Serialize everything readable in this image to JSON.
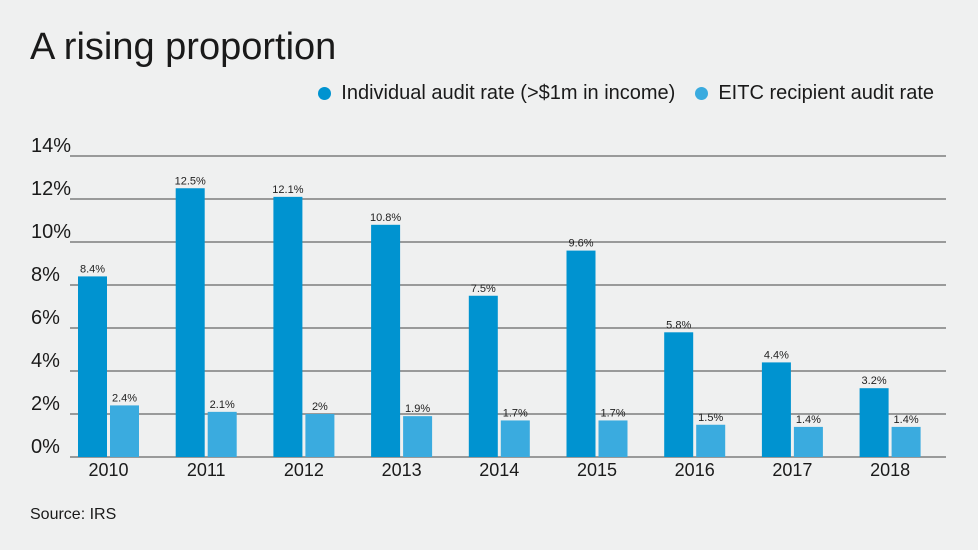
{
  "chart_data": {
    "type": "bar",
    "title": "A rising proportion",
    "source": "Source: IRS",
    "categories": [
      "2010",
      "2011",
      "2012",
      "2013",
      "2014",
      "2015",
      "2016",
      "2017",
      "2018"
    ],
    "series": [
      {
        "name": "Individual audit rate (>$1m in income)",
        "color": "#0093d0",
        "values": [
          8.4,
          12.5,
          12.1,
          10.8,
          7.5,
          9.6,
          5.8,
          4.4,
          3.2
        ],
        "labels": [
          "8.4%",
          "12.5%",
          "12.1%",
          "10.8%",
          "7.5%",
          "9.6%",
          "5.8%",
          "4.4%",
          "3.2%"
        ]
      },
      {
        "name": "EITC recipient audit rate",
        "color": "#3aabdf",
        "values": [
          2.4,
          2.1,
          2,
          1.9,
          1.7,
          1.7,
          1.5,
          1.4,
          1.4
        ],
        "labels": [
          "2.4%",
          "2.1%",
          "2%",
          "1.9%",
          "1.7%",
          "1.7%",
          "1.5%",
          "1.4%",
          "1.4%"
        ]
      }
    ],
    "yticks": [
      "0%",
      "2%",
      "4%",
      "6%",
      "8%",
      "10%",
      "12%",
      "14%"
    ],
    "ylim": [
      0,
      14
    ],
    "grid": true,
    "legend": "top-right"
  }
}
